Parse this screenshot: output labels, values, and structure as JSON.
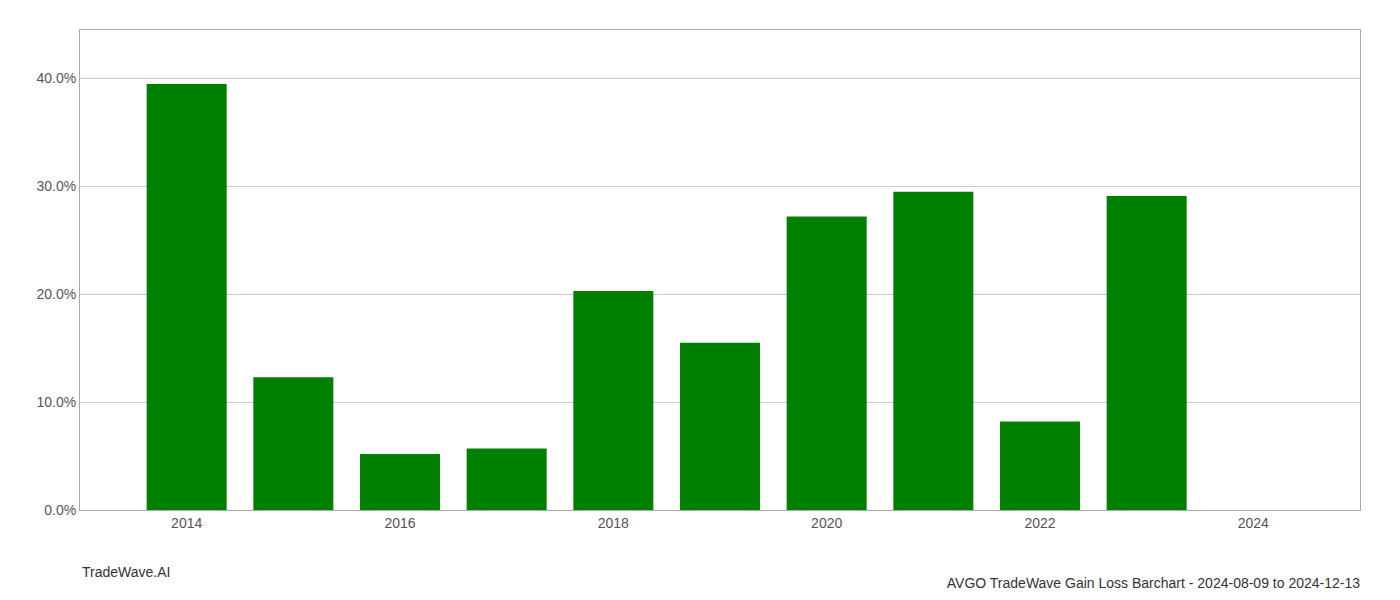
{
  "chart_data": {
    "type": "bar",
    "title": "AVGO TradeWave Gain Loss Barchart - 2024-08-09 to 2024-12-13",
    "annotations": [
      "TradeWave.AI"
    ],
    "x": [
      2014,
      2015,
      2016,
      2017,
      2018,
      2019,
      2020,
      2021,
      2022,
      2023
    ],
    "values": [
      0.395,
      0.123,
      0.052,
      0.057,
      0.203,
      0.155,
      0.272,
      0.295,
      0.082,
      0.291
    ],
    "color": "#008000",
    "xlim": [
      2013.0,
      2025.0
    ],
    "xticks": [
      2014,
      2016,
      2018,
      2020,
      2022,
      2024
    ],
    "ylim": [
      0.0,
      0.445
    ],
    "yticks": [
      {
        "value": 0.0,
        "label": "0.0%"
      },
      {
        "value": 0.1,
        "label": "10.0%"
      },
      {
        "value": 0.2,
        "label": "20.0%"
      },
      {
        "value": 0.3,
        "label": "30.0%"
      },
      {
        "value": 0.4,
        "label": "40.0%"
      }
    ],
    "grid": true
  }
}
